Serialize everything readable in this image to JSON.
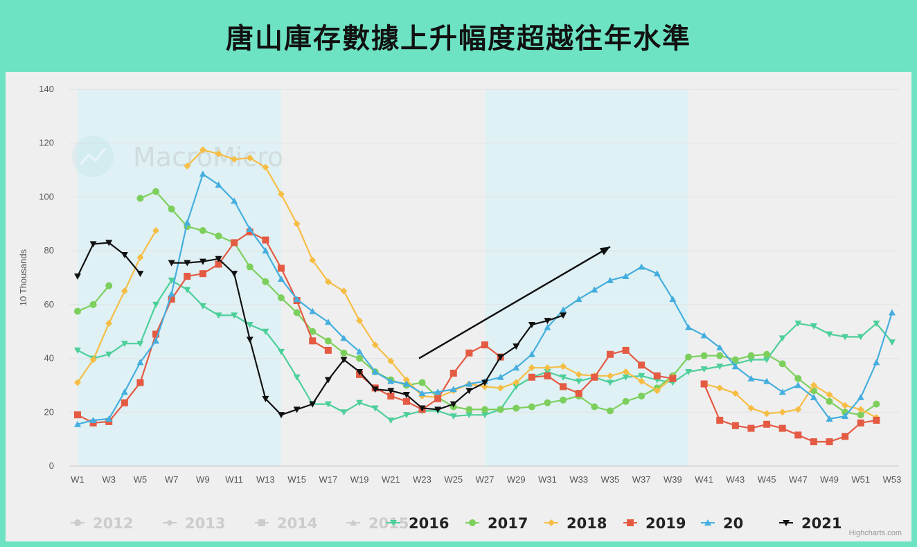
{
  "title": "唐山庫存數據上升幅度超越往年水準",
  "watermark": "MacroMicro",
  "credit": "Highcharts.com",
  "chart_data": {
    "type": "line",
    "ylabel": "10 Thousands",
    "ylim": [
      0,
      140
    ],
    "yticks": [
      0,
      20,
      40,
      60,
      80,
      100,
      120,
      140
    ],
    "x_labels": [
      "W1",
      "W3",
      "W5",
      "W7",
      "W9",
      "W11",
      "W13",
      "W15",
      "W17",
      "W19",
      "W21",
      "W23",
      "W25",
      "W27",
      "W29",
      "W31",
      "W33",
      "W35",
      "W37",
      "W39",
      "W41",
      "W43",
      "W45",
      "W47",
      "W49",
      "W51",
      "W53"
    ],
    "shaded_bands": [
      [
        1,
        14
      ],
      [
        27,
        40
      ]
    ],
    "legend": [
      {
        "name": "2012",
        "color": "#cccccc",
        "symbol": "circle",
        "active": false
      },
      {
        "name": "2013",
        "color": "#cccccc",
        "symbol": "diamond",
        "active": false
      },
      {
        "name": "2014",
        "color": "#cccccc",
        "symbol": "square",
        "active": false
      },
      {
        "name": "2015",
        "color": "#cccccc",
        "symbol": "triangle",
        "active": false
      },
      {
        "name": "2016",
        "color": "#4dcf9a",
        "symbol": "triangle-down",
        "active": true
      },
      {
        "name": "2017",
        "color": "#7ccf5c",
        "symbol": "circle",
        "active": true
      },
      {
        "name": "2018",
        "color": "#f6bd45",
        "symbol": "diamond",
        "active": true
      },
      {
        "name": "2019",
        "color": "#e45a43",
        "symbol": "square",
        "active": true
      },
      {
        "name": "20",
        "color": "#44aede",
        "symbol": "triangle",
        "active": true
      },
      {
        "name": "2021",
        "color": "#111111",
        "symbol": "triangle-down",
        "active": true
      }
    ],
    "series": [
      {
        "name": "2016",
        "color": "#4dcf9a",
        "symbol": "triangle-down",
        "values": [
          43,
          40,
          41.5,
          45.5,
          45.5,
          60,
          69,
          65.5,
          59.5,
          56,
          56,
          52.5,
          50,
          42.5,
          33,
          23,
          23,
          20,
          23.5,
          21.5,
          17,
          19,
          20.5,
          20.5,
          18.5,
          19,
          19,
          21,
          29.5,
          33,
          35,
          33,
          31.5,
          33,
          31,
          33,
          33.5,
          32,
          31,
          35,
          36,
          37,
          38,
          39.5,
          39.5,
          47.5,
          53,
          52,
          49,
          48,
          48,
          53,
          46
        ]
      },
      {
        "name": "2017",
        "color": "#7ccf5c",
        "symbol": "circle",
        "segments": [
          {
            "start": 1,
            "values": [
              57.5,
              60,
              67
            ]
          },
          {
            "start": 5,
            "values": [
              99.5,
              102,
              95.5,
              89,
              87.5,
              85.5,
              83,
              74,
              68.5,
              62.5,
              57,
              50,
              46.5,
              42,
              40,
              35,
              32,
              30,
              31,
              25.5,
              22,
              21,
              21,
              21,
              21.5,
              22,
              23.5,
              24.5,
              26,
              22,
              20.5,
              24,
              26,
              29,
              33.5,
              40.5,
              41,
              41,
              39.5,
              41,
              41.5,
              38,
              32.5,
              28,
              24,
              20,
              19,
              23
            ]
          }
        ]
      },
      {
        "name": "2018",
        "color": "#f6bd45",
        "symbol": "diamond",
        "segments": [
          {
            "start": 1,
            "values": [
              31,
              39.5,
              53,
              65,
              77.5,
              87.5
            ]
          },
          {
            "start": 8,
            "values": [
              111.5,
              117.5,
              116,
              114,
              114.5,
              111,
              101,
              90,
              76.5,
              68.5,
              65,
              54,
              45,
              39,
              32,
              26,
              25.5,
              28,
              30.5,
              29.5,
              29,
              31,
              36.5,
              36.5,
              37,
              34,
              33.5,
              33.5,
              35,
              31.5,
              28,
              33
            ]
          },
          {
            "start": 41,
            "values": [
              30.5,
              29,
              27,
              21.5,
              19.5,
              20,
              21,
              30,
              26.5,
              22.5,
              21,
              18
            ]
          }
        ]
      },
      {
        "name": "2019",
        "color": "#e45a43",
        "symbol": "square",
        "segments": [
          {
            "start": 1,
            "values": [
              19,
              16,
              16.5,
              23.5,
              31,
              49,
              62,
              70.5,
              71.5,
              75,
              83,
              87,
              84,
              73.5,
              61.5,
              46.5,
              43
            ]
          },
          {
            "start": 19,
            "values": [
              34,
              29,
              26,
              24,
              21,
              25,
              34.5,
              42,
              45,
              40.5
            ]
          },
          {
            "start": 30,
            "values": [
              33,
              33.5,
              29.5,
              27,
              33,
              41.5,
              43,
              37.5,
              33.5,
              32.5
            ]
          },
          {
            "start": 41,
            "values": [
              30.5,
              17,
              15,
              14,
              15.5,
              14,
              11.5,
              9,
              9,
              11,
              16,
              17
            ]
          }
        ]
      },
      {
        "name": "20",
        "color": "#44aede",
        "symbol": "triangle",
        "values": [
          15.5,
          17,
          17.5,
          27.5,
          38.5,
          46.5,
          64,
          90.5,
          108.5,
          104.5,
          98.5,
          88,
          80,
          69.5,
          62,
          57.5,
          53.5,
          47.5,
          42.5,
          35,
          31.5,
          30.5,
          27,
          27.5,
          28.5,
          30.5,
          31.5,
          33,
          36.5,
          41.5,
          51.5,
          58,
          62,
          65.5,
          69,
          70.5,
          74,
          71.5,
          62,
          51.5,
          48.5,
          44,
          37,
          32.5,
          31.5,
          27.5,
          30,
          25.5,
          17.5,
          18.5,
          25.5,
          38.5,
          57
        ]
      },
      {
        "name": "2021",
        "color": "#111111",
        "symbol": "triangle-down",
        "segments": [
          {
            "start": 1,
            "values": [
              70.5,
              82.5,
              83,
              78.5,
              71.5
            ]
          },
          {
            "start": 7,
            "values": [
              75.5,
              75.5,
              76,
              77,
              71.5,
              47,
              25,
              19,
              21,
              23,
              32,
              39.5,
              35,
              28.5,
              28,
              26.5,
              21.5,
              21,
              23,
              28,
              31,
              40.5,
              44.5,
              52.5,
              54,
              56
            ]
          }
        ]
      }
    ],
    "annotation_arrow": {
      "from": [
        22.8,
        40
      ],
      "to": [
        35,
        81.5
      ]
    }
  }
}
